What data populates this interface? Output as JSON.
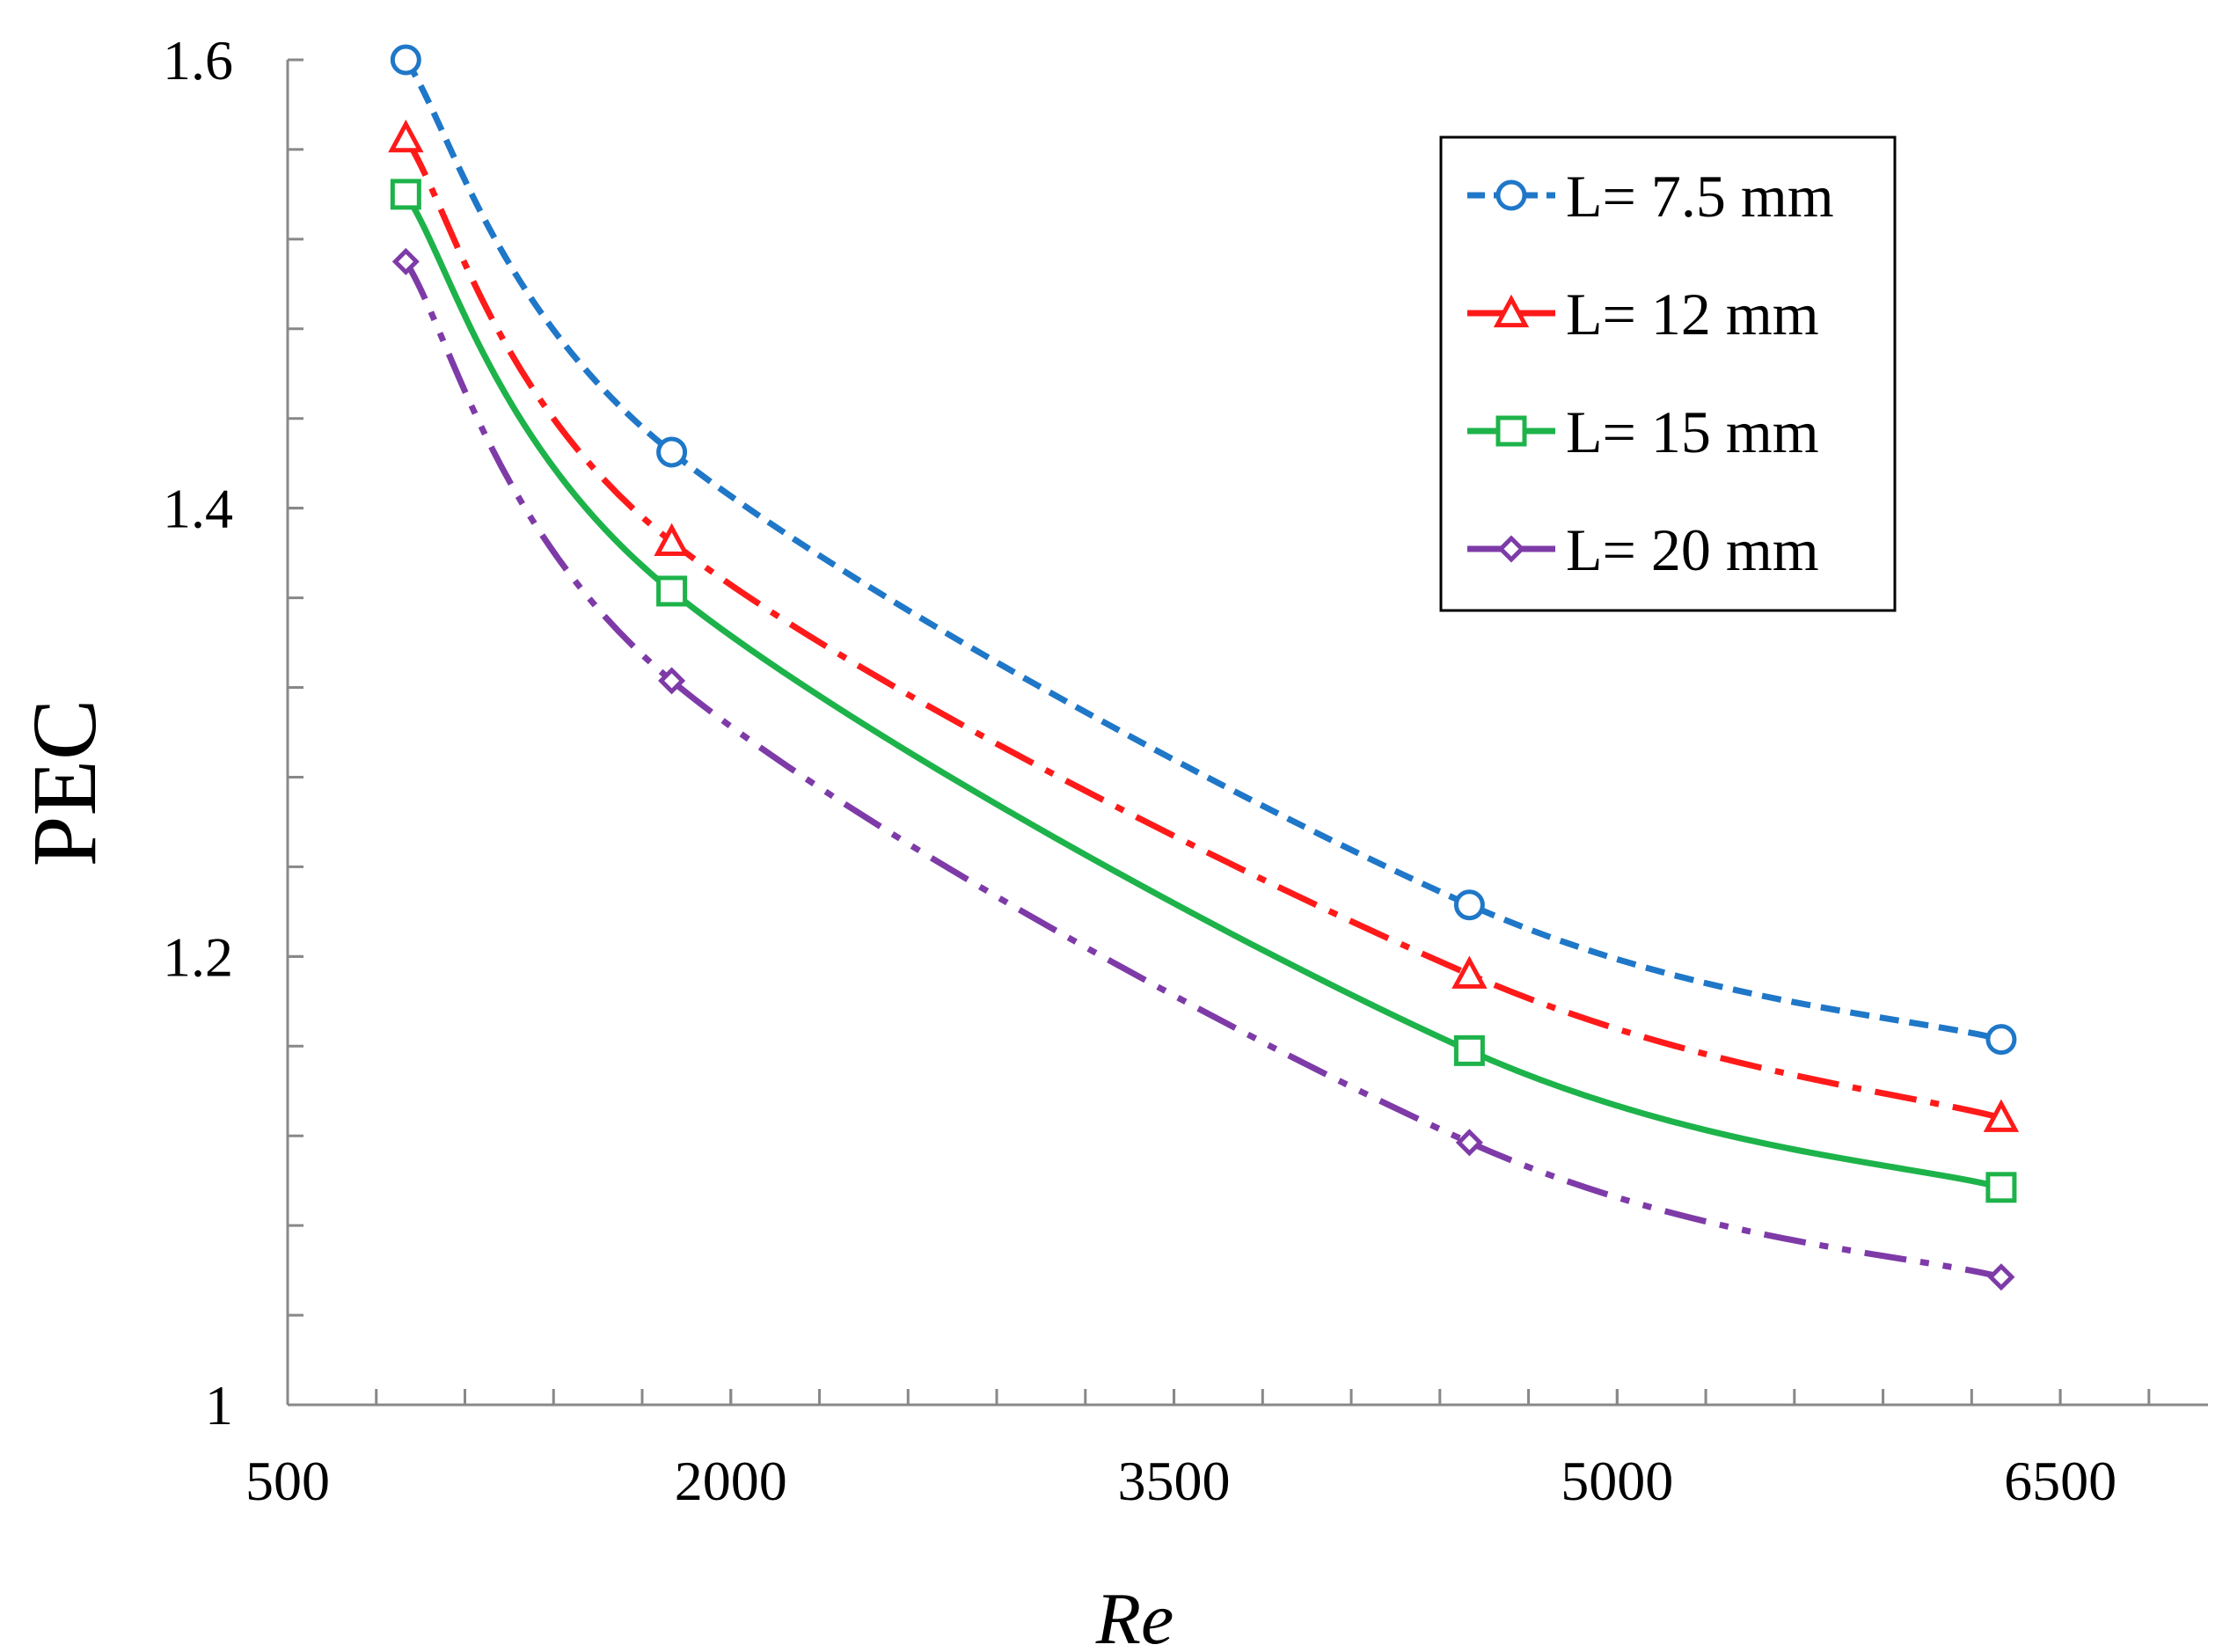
{
  "chart_data": {
    "type": "line",
    "title": "",
    "xlabel": "Re",
    "ylabel": "PEC",
    "xlim": [
      500,
      7000
    ],
    "ylim": [
      1,
      1.6
    ],
    "x_ticks": [
      500,
      2000,
      3500,
      5000,
      6500
    ],
    "x_tick_labels": [
      "500",
      "2000",
      "3500",
      "5000",
      "6500"
    ],
    "y_ticks": [
      1,
      1.2,
      1.4,
      1.6
    ],
    "y_tick_labels": [
      "1",
      "1.2",
      "1.4",
      "1.6"
    ],
    "x_minor_step": 300,
    "y_minor_step": 0.04,
    "x": [
      900,
      1800,
      4500,
      6300
    ],
    "legend_position": "top-right",
    "series": [
      {
        "name": "L= 7.5 mm",
        "values": [
          1.6,
          1.425,
          1.223,
          1.163
        ],
        "color": "#1F77C8",
        "marker": "circle",
        "dash": "dash"
      },
      {
        "name": "L= 12 mm",
        "values": [
          1.565,
          1.385,
          1.192,
          1.128
        ],
        "color": "#FF1A1A",
        "marker": "triangle",
        "dash": "dash-dot"
      },
      {
        "name": "L= 15 mm",
        "values": [
          1.54,
          1.363,
          1.158,
          1.097
        ],
        "color": "#1DB34A",
        "marker": "square",
        "dash": "solid"
      },
      {
        "name": "L= 20 mm",
        "values": [
          1.51,
          1.323,
          1.117,
          1.057
        ],
        "color": "#7E3BA8",
        "marker": "diamond",
        "dash": "dash-dot-dot"
      }
    ]
  }
}
